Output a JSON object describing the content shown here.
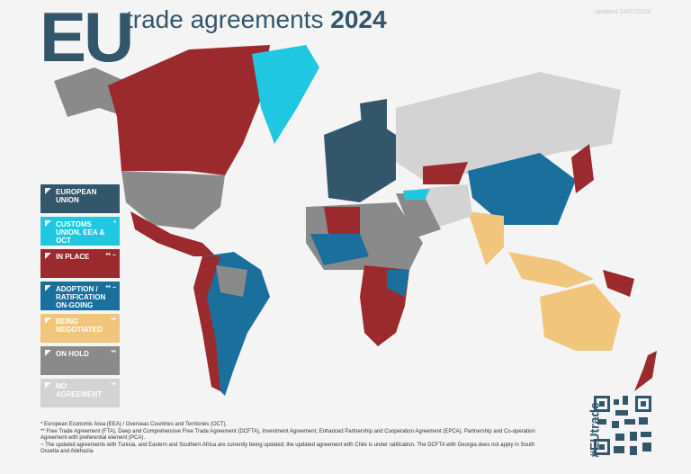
{
  "header": {
    "logo": "EU",
    "title": "trade agreements",
    "year": "2024",
    "updated": "Updated 24/07/2024"
  },
  "legend": [
    {
      "label": "EUROPEAN UNION",
      "mark": "",
      "color": "#34566a"
    },
    {
      "label": "CUSTOMS UNION, EEA & OCT",
      "mark": "*",
      "color": "#1fc8e0"
    },
    {
      "label": "IN PLACE",
      "mark": "** ~",
      "color": "#9b2a2e"
    },
    {
      "label": "ADOPTION / RATIFICATION ON-GOING",
      "mark": "** ~",
      "color": "#1b6f9c"
    },
    {
      "label": "BEING NEGOTIATED",
      "mark": "**",
      "color": "#f2c57c"
    },
    {
      "label": "ON HOLD",
      "mark": "**",
      "color": "#8a8a8a"
    },
    {
      "label": "NO AGREEMENT",
      "mark": "**",
      "color": "#d3d3d3"
    }
  ],
  "footnotes": [
    "* European Economic Area (EEA) / Overseas Countries and Territories (OCT).",
    "** Free Trade Agreement (FTA), Deep and Comprehensive Free Trade Agreement (DCFTA), Investment Agreement, Enhanced Partnership and Cooperation Agreement (EPCA), Partnership and Co-operation Agreement with preferential element (PCA).",
    "~ The updated agreements with Tunisia, and Eastern and Southern Africa are currently being updated; the updated agreement with Chile is under ratification. The DCFTA with Georgia does not apply in South Ossetia and Abkhazia."
  ],
  "hashtag": "#EUtrade"
}
